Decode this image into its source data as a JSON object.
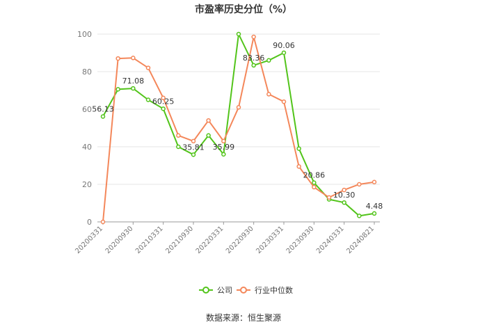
{
  "chart_data": {
    "type": "line",
    "title": "市盈率历史分位（%）",
    "xlabel": "",
    "ylabel": "",
    "ylim": [
      0,
      100
    ],
    "yticks": [
      0,
      20,
      40,
      60,
      80,
      100
    ],
    "grid": true,
    "legend_position": "bottom-center",
    "x": [
      "20200331",
      "20200630",
      "20200930",
      "20201231",
      "20210331",
      "20210630",
      "20210930",
      "20211231",
      "20220331",
      "20220630",
      "20220930",
      "20221231",
      "20230331",
      "20230630",
      "20230930",
      "20231231",
      "20240331",
      "20240630",
      "20240821"
    ],
    "x_tick_labels": [
      "20200331",
      "20200930",
      "20210331",
      "20210930",
      "20220331",
      "20220930",
      "20230331",
      "20230930",
      "20240331",
      "20240821"
    ],
    "series": [
      {
        "name": "公司",
        "color": "#52c41a",
        "values": [
          56.13,
          70.6,
          71.08,
          65.0,
          60.25,
          40.0,
          35.81,
          46.0,
          35.99,
          100.0,
          83.36,
          86.0,
          90.06,
          39.0,
          20.86,
          12.0,
          10.3,
          3.2,
          4.48
        ]
      },
      {
        "name": "行业中位数",
        "color": "#f4875a",
        "values": [
          0.0,
          87.0,
          87.3,
          82.0,
          66.0,
          46.0,
          43.0,
          54.0,
          43.0,
          61.0,
          98.5,
          68.0,
          64.0,
          29.5,
          18.5,
          13.0,
          17.0,
          20.0,
          21.2
        ]
      }
    ],
    "data_labels": [
      {
        "series": 0,
        "index": 0,
        "text": "56.13"
      },
      {
        "series": 0,
        "index": 2,
        "text": "71.08"
      },
      {
        "series": 0,
        "index": 4,
        "text": "60.25"
      },
      {
        "series": 0,
        "index": 6,
        "text": "35.81"
      },
      {
        "series": 0,
        "index": 8,
        "text": "35.99"
      },
      {
        "series": 0,
        "index": 10,
        "text": "83.36"
      },
      {
        "series": 0,
        "index": 12,
        "text": "90.06"
      },
      {
        "series": 0,
        "index": 14,
        "text": "20.86"
      },
      {
        "series": 0,
        "index": 16,
        "text": "10.30"
      },
      {
        "series": 0,
        "index": 18,
        "text": "4.48"
      }
    ]
  },
  "source_text": "数据来源：恒生聚源"
}
